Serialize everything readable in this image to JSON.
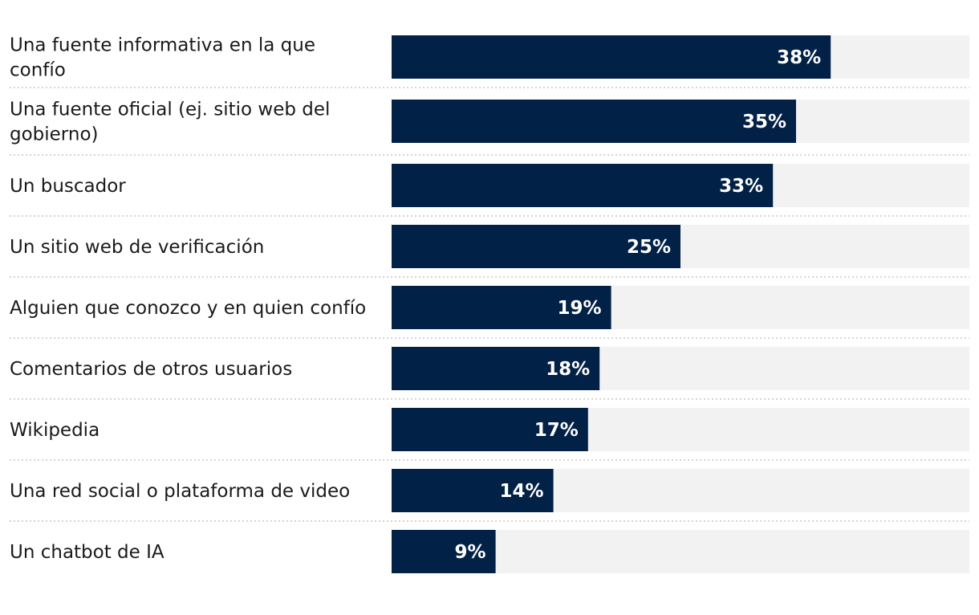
{
  "chart_data": {
    "type": "bar",
    "orientation": "horizontal",
    "categories": [
      "Una fuente informativa en la que confío",
      "Una fuente oficial (ej. sitio web del gobierno)",
      "Un buscador",
      "Un sitio web de verificación",
      "Alguien que conozco y en quien confío",
      "Comentarios de otros usuarios",
      "Wikipedia",
      "Una red social o plataforma de video",
      "Un chatbot de IA"
    ],
    "values": [
      38,
      35,
      33,
      25,
      19,
      18,
      17,
      14,
      9
    ],
    "value_labels": [
      "38%",
      "35%",
      "33%",
      "25%",
      "19%",
      "18%",
      "17%",
      "14%",
      "9%"
    ],
    "xlim": [
      0,
      50
    ],
    "title": "",
    "xlabel": "",
    "ylabel": "",
    "grid": false,
    "legend": "none",
    "colors": {
      "bar": "#022147",
      "track": "#f2f2f2",
      "value_text": "#ffffff",
      "label_text": "#1a1a1a"
    }
  }
}
